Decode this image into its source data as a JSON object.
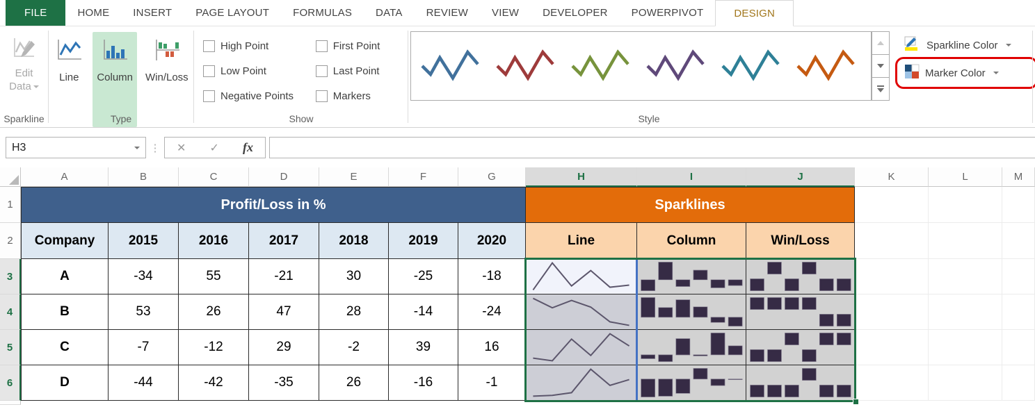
{
  "ribbon": {
    "tabs": [
      "FILE",
      "HOME",
      "INSERT",
      "PAGE LAYOUT",
      "FORMULAS",
      "DATA",
      "REVIEW",
      "VIEW",
      "DEVELOPER",
      "POWERPIVOT",
      "DESIGN"
    ],
    "active_tab": "DESIGN",
    "sparkline_group": {
      "label": "Sparkline",
      "edit_data_label": "Edit Data"
    },
    "type_group": {
      "label": "Type",
      "buttons": [
        "Line",
        "Column",
        "Win/Loss"
      ],
      "selected": "Column"
    },
    "show_group": {
      "label": "Show",
      "options": [
        "High Point",
        "Low Point",
        "Negative Points",
        "First Point",
        "Last Point",
        "Markers"
      ],
      "checked": []
    },
    "style_group": {
      "label": "Style",
      "sparkline_color_label": "Sparkline Color",
      "marker_color_label": "Marker Color",
      "swatch_colors": [
        "#41719C",
        "#9E3B3B",
        "#77933C",
        "#5F497A",
        "#2E8097",
        "#C55A11"
      ]
    }
  },
  "formula_bar": {
    "name_box": "H3",
    "formula": "",
    "cancel_icon": "✕",
    "enter_icon": "✓",
    "fx_icon": "fx"
  },
  "sheet": {
    "column_headers": [
      "A",
      "B",
      "C",
      "D",
      "E",
      "F",
      "G",
      "H",
      "I",
      "J",
      "K",
      "L",
      "M"
    ],
    "selected_columns": [
      "H",
      "I",
      "J"
    ],
    "row_headers": [
      "1",
      "2",
      "3",
      "4",
      "5",
      "6"
    ],
    "selected_rows": [
      "3",
      "4",
      "5",
      "6"
    ],
    "active_cell": "H3",
    "banner_left": "Profit/Loss in %",
    "banner_right": "Sparklines",
    "header_row": {
      "company": "Company",
      "years": [
        "2015",
        "2016",
        "2017",
        "2018",
        "2019",
        "2020"
      ],
      "spark_headers": [
        "Line",
        "Column",
        "Win/Loss"
      ]
    },
    "data_rows": [
      {
        "company": "A",
        "values": [
          -34,
          55,
          -21,
          30,
          -25,
          -18
        ]
      },
      {
        "company": "B",
        "values": [
          53,
          26,
          47,
          28,
          -14,
          -24
        ]
      },
      {
        "company": "C",
        "values": [
          -7,
          -12,
          29,
          -2,
          39,
          16
        ]
      },
      {
        "company": "D",
        "values": [
          -44,
          -42,
          -35,
          26,
          -16,
          -1
        ]
      }
    ]
  },
  "annotation": {
    "highlighted_control": "Marker Color",
    "highlight_color": "#E00202"
  },
  "colors": {
    "excel_green": "#1E7145",
    "banner_blue": "#3F608C",
    "banner_blue_light": "#DDE8F2",
    "banner_orange": "#E36C0A",
    "banner_orange_light": "#FBD4AC",
    "spark_bar": "#362B45",
    "spark_line": "#5C566C",
    "selection_fill": "#D2D2D2",
    "selection_fill_h": "#CDCED6",
    "active_cell_fill": "#F1F3FB",
    "group_outline_blue": "#4472C4",
    "active_tab_gold": "#A1761B"
  }
}
